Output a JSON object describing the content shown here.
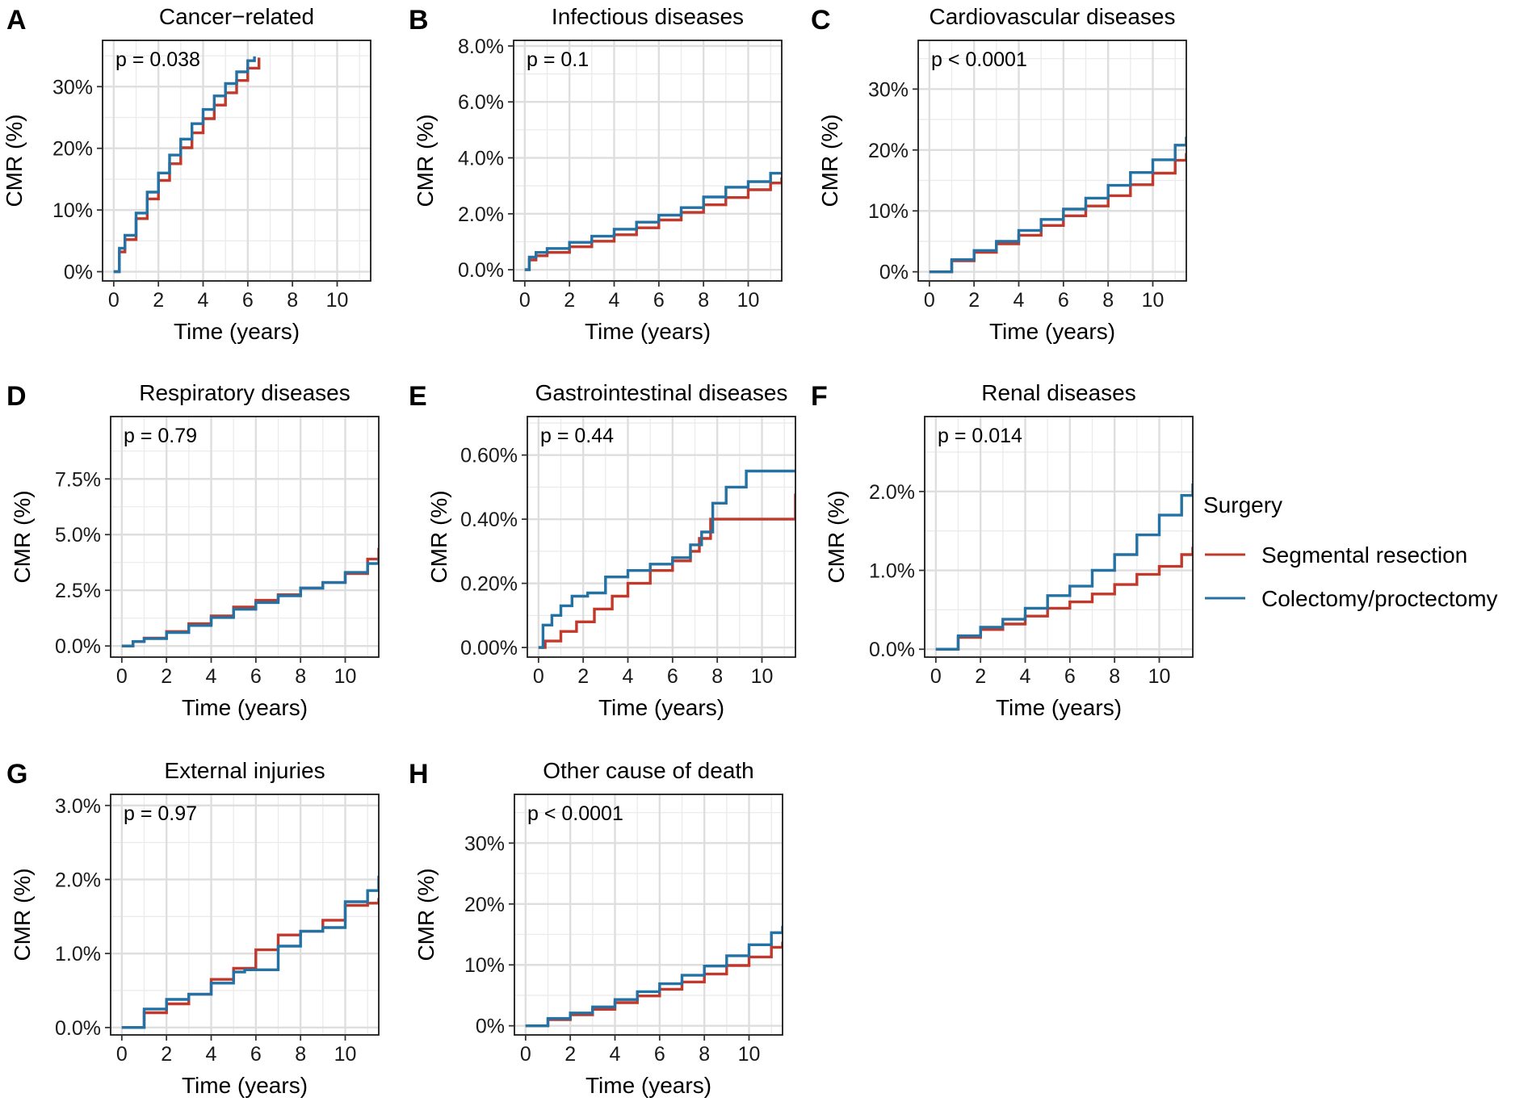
{
  "figure": {
    "legend": {
      "title": "Surgery",
      "entries": [
        {
          "label": "Segmental resection",
          "color": "#C0392B"
        },
        {
          "label": "Colectomy/proctectomy",
          "color": "#2471A3"
        }
      ]
    }
  },
  "chart_data": [
    {
      "type": "line",
      "letter": "A",
      "title": "Cancer−related",
      "pvalue": "p = 0.038",
      "xlabel": "Time (years)",
      "ylabel": "CMR (%)",
      "xlim": [
        -0.5,
        11.5
      ],
      "ylim": [
        -1.5,
        37.5
      ],
      "xticks": [
        0,
        2,
        4,
        6,
        8,
        10
      ],
      "xtick_labels": [
        "0",
        "2",
        "4",
        "6",
        "8",
        "10"
      ],
      "yticks": [
        0,
        10,
        20,
        30
      ],
      "ytick_labels": [
        "0%",
        "10%",
        "20%",
        "30%"
      ],
      "series": [
        {
          "name": "Segmental resection",
          "color": "#C0392B",
          "x": [
            0,
            0.25,
            0.5,
            1,
            1.5,
            2,
            2.5,
            3,
            3.5,
            4,
            4.5,
            5,
            5.5,
            6,
            6.5
          ],
          "y": [
            0,
            3.2,
            5.2,
            8.6,
            11.8,
            14.8,
            17.5,
            20.1,
            22.5,
            24.8,
            27.0,
            29.0,
            31.0,
            33.0,
            34.7
          ]
        },
        {
          "name": "Colectomy/proctectomy",
          "color": "#2471A3",
          "x": [
            0,
            0.25,
            0.5,
            1,
            1.5,
            2,
            2.5,
            3,
            3.5,
            4,
            4.5,
            5,
            5.5,
            6,
            6.3
          ],
          "y": [
            0,
            3.8,
            5.9,
            9.5,
            12.9,
            16.0,
            18.9,
            21.5,
            24.0,
            26.3,
            28.5,
            30.5,
            32.4,
            34.2,
            34.9
          ]
        }
      ]
    },
    {
      "type": "line",
      "letter": "B",
      "title": "Infectious diseases",
      "pvalue": "p = 0.1",
      "xlabel": "Time (years)",
      "ylabel": "CMR (%)",
      "xlim": [
        -0.5,
        11.5
      ],
      "ylim": [
        -0.4,
        8.2
      ],
      "xticks": [
        0,
        2,
        4,
        6,
        8,
        10
      ],
      "xtick_labels": [
        "0",
        "2",
        "4",
        "6",
        "8",
        "10"
      ],
      "yticks": [
        0,
        2,
        4,
        6,
        8
      ],
      "ytick_labels": [
        "0.0%",
        "2.0%",
        "4.0%",
        "6.0%",
        "8.0%"
      ],
      "series": [
        {
          "name": "Segmental resection",
          "color": "#C0392B",
          "x": [
            0,
            0.2,
            0.5,
            1,
            2,
            3,
            4,
            5,
            6,
            7,
            8,
            9,
            10,
            11,
            11.5
          ],
          "y": [
            0,
            0.35,
            0.5,
            0.62,
            0.82,
            1.02,
            1.25,
            1.5,
            1.78,
            2.05,
            2.32,
            2.58,
            2.86,
            3.1,
            3.3
          ]
        },
        {
          "name": "Colectomy/proctectomy",
          "color": "#2471A3",
          "x": [
            0,
            0.2,
            0.5,
            1,
            2,
            3,
            4,
            5,
            6,
            7,
            8,
            9,
            10,
            11,
            11.5
          ],
          "y": [
            0,
            0.45,
            0.62,
            0.76,
            0.98,
            1.2,
            1.45,
            1.7,
            1.95,
            2.22,
            2.6,
            2.95,
            3.15,
            3.45,
            3.5
          ]
        }
      ]
    },
    {
      "type": "line",
      "letter": "C",
      "title": "Cardiovascular diseases",
      "pvalue": "p < 0.0001",
      "xlabel": "Time (years)",
      "ylabel": "CMR (%)",
      "xlim": [
        -0.5,
        11.5
      ],
      "ylim": [
        -1.5,
        38
      ],
      "xticks": [
        0,
        2,
        4,
        6,
        8,
        10
      ],
      "xtick_labels": [
        "0",
        "2",
        "4",
        "6",
        "8",
        "10"
      ],
      "yticks": [
        0,
        10,
        20,
        30
      ],
      "ytick_labels": [
        "0%",
        "10%",
        "20%",
        "30%"
      ],
      "series": [
        {
          "name": "Segmental resection",
          "color": "#C0392B",
          "x": [
            0,
            1,
            2,
            3,
            4,
            5,
            6,
            7,
            8,
            9,
            10,
            11,
            11.5
          ],
          "y": [
            0,
            1.8,
            3.2,
            4.6,
            6.0,
            7.6,
            9.2,
            10.8,
            12.5,
            14.3,
            16.2,
            18.3,
            19.5
          ]
        },
        {
          "name": "Colectomy/proctectomy",
          "color": "#2471A3",
          "x": [
            0,
            1,
            2,
            3,
            4,
            5,
            6,
            7,
            8,
            9,
            10,
            11,
            11.5
          ],
          "y": [
            0,
            2.0,
            3.5,
            5.0,
            6.8,
            8.6,
            10.3,
            12.1,
            14.2,
            16.3,
            18.4,
            20.8,
            22.2
          ]
        }
      ]
    },
    {
      "type": "line",
      "letter": "D",
      "title": "Respiratory diseases",
      "pvalue": "p = 0.79",
      "xlabel": "Time (years)",
      "ylabel": "CMR (%)",
      "xlim": [
        -0.5,
        11.5
      ],
      "ylim": [
        -0.5,
        10.3
      ],
      "xticks": [
        0,
        2,
        4,
        6,
        8,
        10
      ],
      "xtick_labels": [
        "0",
        "2",
        "4",
        "6",
        "8",
        "10"
      ],
      "yticks": [
        0,
        2.5,
        5,
        7.5
      ],
      "ytick_labels": [
        "0.0%",
        "2.5%",
        "5.0%",
        "7.5%"
      ],
      "series": [
        {
          "name": "Segmental resection",
          "color": "#C0392B",
          "x": [
            0,
            0.5,
            1,
            2,
            3,
            4,
            5,
            6,
            7,
            8,
            9,
            10,
            11,
            11.5
          ],
          "y": [
            0,
            0.2,
            0.35,
            0.65,
            1.0,
            1.35,
            1.75,
            2.05,
            2.3,
            2.6,
            2.85,
            3.25,
            3.9,
            4.4
          ]
        },
        {
          "name": "Colectomy/proctectomy",
          "color": "#2471A3",
          "x": [
            0,
            0.5,
            1,
            2,
            3,
            4,
            5,
            6,
            7,
            8,
            9,
            10,
            11,
            11.5
          ],
          "y": [
            0,
            0.2,
            0.33,
            0.6,
            0.92,
            1.28,
            1.65,
            1.95,
            2.25,
            2.6,
            2.85,
            3.3,
            3.7,
            4.0
          ]
        }
      ]
    },
    {
      "type": "line",
      "letter": "E",
      "title": "Gastrointestinal diseases",
      "pvalue": "p = 0.44",
      "xlabel": "Time (years)",
      "ylabel": "CMR (%)",
      "xlim": [
        -0.5,
        11.5
      ],
      "ylim": [
        -0.03,
        0.72
      ],
      "xticks": [
        0,
        2,
        4,
        6,
        8,
        10
      ],
      "xtick_labels": [
        "0",
        "2",
        "4",
        "6",
        "8",
        "10"
      ],
      "yticks": [
        0,
        0.2,
        0.4,
        0.6
      ],
      "ytick_labels": [
        "0.00%",
        "0.20%",
        "0.40%",
        "0.60%"
      ],
      "series": [
        {
          "name": "Segmental resection",
          "color": "#C0392B",
          "x": [
            0,
            0.3,
            1,
            1.7,
            2.5,
            3.3,
            4,
            5,
            6,
            6.8,
            7.2,
            7.7,
            8.5,
            9.5,
            10.8,
            11.5
          ],
          "y": [
            0,
            0.02,
            0.05,
            0.08,
            0.12,
            0.16,
            0.2,
            0.24,
            0.27,
            0.3,
            0.34,
            0.4,
            0.4,
            0.4,
            0.4,
            0.48
          ]
        },
        {
          "name": "Colectomy/proctectomy",
          "color": "#2471A3",
          "x": [
            0,
            0.2,
            0.6,
            1,
            1.5,
            2.2,
            3,
            3.5,
            4,
            5,
            6,
            6.8,
            7.3,
            7.8,
            8.4,
            9.3,
            10,
            11,
            11.5
          ],
          "y": [
            0,
            0.07,
            0.1,
            0.13,
            0.16,
            0.17,
            0.22,
            0.22,
            0.24,
            0.26,
            0.28,
            0.32,
            0.36,
            0.45,
            0.5,
            0.55,
            0.55,
            0.55,
            0.55
          ]
        }
      ]
    },
    {
      "type": "line",
      "letter": "F",
      "title": "Renal diseases",
      "pvalue": "p = 0.014",
      "xlabel": "Time (years)",
      "ylabel": "CMR (%)",
      "xlim": [
        -0.5,
        11.5
      ],
      "ylim": [
        -0.1,
        2.95
      ],
      "xticks": [
        0,
        2,
        4,
        6,
        8,
        10
      ],
      "xtick_labels": [
        "0",
        "2",
        "4",
        "6",
        "8",
        "10"
      ],
      "yticks": [
        0,
        1,
        2
      ],
      "ytick_labels": [
        "0.0%",
        "1.0%",
        "2.0%"
      ],
      "series": [
        {
          "name": "Segmental resection",
          "color": "#C0392B",
          "x": [
            0,
            1,
            2,
            3,
            4,
            5,
            6,
            7,
            8,
            9,
            10,
            11,
            11.5
          ],
          "y": [
            0,
            0.15,
            0.25,
            0.32,
            0.42,
            0.52,
            0.6,
            0.7,
            0.82,
            0.95,
            1.05,
            1.2,
            1.3
          ]
        },
        {
          "name": "Colectomy/proctectomy",
          "color": "#2471A3",
          "x": [
            0,
            1,
            2,
            3,
            4,
            5,
            6,
            7,
            8,
            9,
            10,
            11,
            11.5
          ],
          "y": [
            0,
            0.17,
            0.28,
            0.38,
            0.52,
            0.68,
            0.8,
            1.0,
            1.2,
            1.45,
            1.7,
            1.95,
            2.1
          ]
        }
      ]
    },
    {
      "type": "line",
      "letter": "G",
      "title": "External injuries",
      "pvalue": "p = 0.97",
      "xlabel": "Time (years)",
      "ylabel": "CMR (%)",
      "xlim": [
        -0.5,
        11.5
      ],
      "ylim": [
        -0.1,
        3.15
      ],
      "xticks": [
        0,
        2,
        4,
        6,
        8,
        10
      ],
      "xtick_labels": [
        "0",
        "2",
        "4",
        "6",
        "8",
        "10"
      ],
      "yticks": [
        0,
        1,
        2,
        3
      ],
      "ytick_labels": [
        "0.0%",
        "1.0%",
        "2.0%",
        "3.0%"
      ],
      "series": [
        {
          "name": "Segmental resection",
          "color": "#C0392B",
          "x": [
            0,
            1,
            2,
            3,
            4,
            5,
            6,
            7,
            8,
            9,
            10,
            11,
            11.5
          ],
          "y": [
            0,
            0.2,
            0.32,
            0.45,
            0.65,
            0.8,
            1.05,
            1.25,
            1.3,
            1.45,
            1.65,
            1.68,
            1.75
          ]
        },
        {
          "name": "Colectomy/proctectomy",
          "color": "#2471A3",
          "x": [
            0,
            1,
            2,
            3,
            4,
            5,
            5.5,
            6.5,
            7,
            8,
            9,
            10,
            11,
            11.5
          ],
          "y": [
            0,
            0.25,
            0.38,
            0.45,
            0.6,
            0.75,
            0.78,
            0.78,
            1.1,
            1.3,
            1.35,
            1.7,
            1.85,
            2.05
          ]
        }
      ]
    },
    {
      "type": "line",
      "letter": "H",
      "title": "Other cause of death",
      "pvalue": "p < 0.0001",
      "xlabel": "Time (years)",
      "ylabel": "CMR (%)",
      "xlim": [
        -0.5,
        11.5
      ],
      "ylim": [
        -1.5,
        38
      ],
      "xticks": [
        0,
        2,
        4,
        6,
        8,
        10
      ],
      "xtick_labels": [
        "0",
        "2",
        "4",
        "6",
        "8",
        "10"
      ],
      "yticks": [
        0,
        10,
        20,
        30
      ],
      "ytick_labels": [
        "0%",
        "10%",
        "20%",
        "30%"
      ],
      "series": [
        {
          "name": "Segmental resection",
          "color": "#C0392B",
          "x": [
            0,
            1,
            2,
            3,
            4,
            5,
            6,
            7,
            8,
            9,
            10,
            11,
            11.5
          ],
          "y": [
            0,
            1.0,
            1.8,
            2.7,
            3.8,
            4.9,
            6.0,
            7.2,
            8.5,
            9.9,
            11.3,
            12.9,
            13.8
          ]
        },
        {
          "name": "Colectomy/proctectomy",
          "color": "#2471A3",
          "x": [
            0,
            1,
            2,
            3,
            4,
            5,
            6,
            7,
            8,
            9,
            10,
            11,
            11.5
          ],
          "y": [
            0,
            1.2,
            2.1,
            3.1,
            4.3,
            5.6,
            6.9,
            8.3,
            9.8,
            11.5,
            13.3,
            15.3,
            16.4
          ]
        }
      ]
    }
  ]
}
